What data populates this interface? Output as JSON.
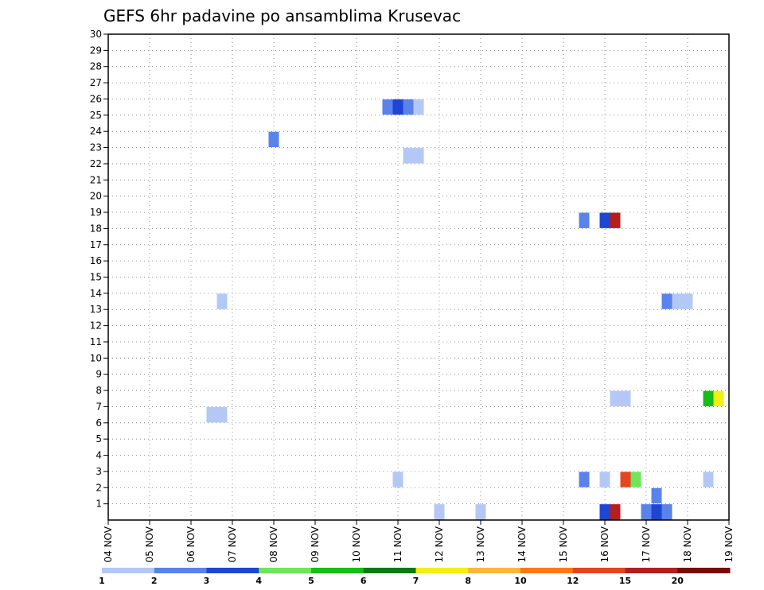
{
  "chart_data": {
    "type": "heatmap",
    "title": "GEFS 6hr padavine po ansamblima Krusevac",
    "y_ticks": [
      "1",
      "2",
      "3",
      "4",
      "5",
      "6",
      "7",
      "8",
      "9",
      "10",
      "11",
      "12",
      "13",
      "14",
      "15",
      "16",
      "17",
      "18",
      "19",
      "20",
      "21",
      "22",
      "23",
      "24",
      "25",
      "26",
      "27",
      "28",
      "29",
      "30"
    ],
    "ylim": [
      0,
      30
    ],
    "x_ticks": [
      "04 NOV",
      "05 NOV",
      "06 NOV",
      "07 NOV",
      "08 NOV",
      "09 NOV",
      "10 NOV",
      "11 NOV",
      "12 NOV",
      "13 NOV",
      "14 NOV",
      "15 NOV",
      "16 NOV",
      "17 NOV",
      "18 NOV",
      "19 NOV"
    ],
    "grid": true,
    "colorbar": {
      "labels": [
        "1",
        "2",
        "3",
        "4",
        "5",
        "6",
        "7",
        "8",
        "10",
        "12",
        "15",
        "20"
      ],
      "colors": [
        "#b4c8f5",
        "#5a82eb",
        "#1e46d2",
        "#6ee65a",
        "#14be14",
        "#0a7814",
        "#f0f014",
        "#ffb43c",
        "#ff7814",
        "#e6461e",
        "#b41e1e",
        "#780a0a"
      ]
    },
    "cells": [
      {
        "day": 2.5,
        "member": 6,
        "class": 0
      },
      {
        "day": 2.75,
        "member": 6,
        "class": 0
      },
      {
        "day": 2.75,
        "member": 13,
        "class": 0
      },
      {
        "day": 4.0,
        "member": 23,
        "class": 1
      },
      {
        "day": 6.75,
        "member": 25,
        "class": 1
      },
      {
        "day": 7.0,
        "member": 25,
        "class": 2
      },
      {
        "day": 7.25,
        "member": 25,
        "class": 1
      },
      {
        "day": 7.5,
        "member": 25,
        "class": 0
      },
      {
        "day": 7.25,
        "member": 22,
        "class": 0
      },
      {
        "day": 7.5,
        "member": 22,
        "class": 0
      },
      {
        "day": 7.0,
        "member": 2,
        "class": 0
      },
      {
        "day": 8.0,
        "member": 0,
        "class": 0
      },
      {
        "day": 9.0,
        "member": 0,
        "class": 0
      },
      {
        "day": 11.5,
        "member": 18,
        "class": 1
      },
      {
        "day": 12.0,
        "member": 18,
        "class": 2
      },
      {
        "day": 12.25,
        "member": 18,
        "class": 10
      },
      {
        "day": 11.5,
        "member": 2,
        "class": 1
      },
      {
        "day": 12.0,
        "member": 2,
        "class": 0
      },
      {
        "day": 12.25,
        "member": 7,
        "class": 0
      },
      {
        "day": 12.5,
        "member": 7,
        "class": 0
      },
      {
        "day": 12.5,
        "member": 2,
        "class": 9
      },
      {
        "day": 12.75,
        "member": 2,
        "class": 3
      },
      {
        "day": 12.0,
        "member": 0,
        "class": 2
      },
      {
        "day": 12.25,
        "member": 0,
        "class": 10
      },
      {
        "day": 13.0,
        "member": 0,
        "class": 1
      },
      {
        "day": 13.25,
        "member": 0,
        "class": 2
      },
      {
        "day": 13.25,
        "member": 1,
        "class": 1
      },
      {
        "day": 13.5,
        "member": 0,
        "class": 1
      },
      {
        "day": 13.5,
        "member": 13,
        "class": 1
      },
      {
        "day": 13.75,
        "member": 13,
        "class": 0
      },
      {
        "day": 14.0,
        "member": 13,
        "class": 0
      },
      {
        "day": 14.5,
        "member": 7,
        "class": 4
      },
      {
        "day": 14.75,
        "member": 7,
        "class": 6
      },
      {
        "day": 14.5,
        "member": 2,
        "class": 0
      }
    ]
  }
}
